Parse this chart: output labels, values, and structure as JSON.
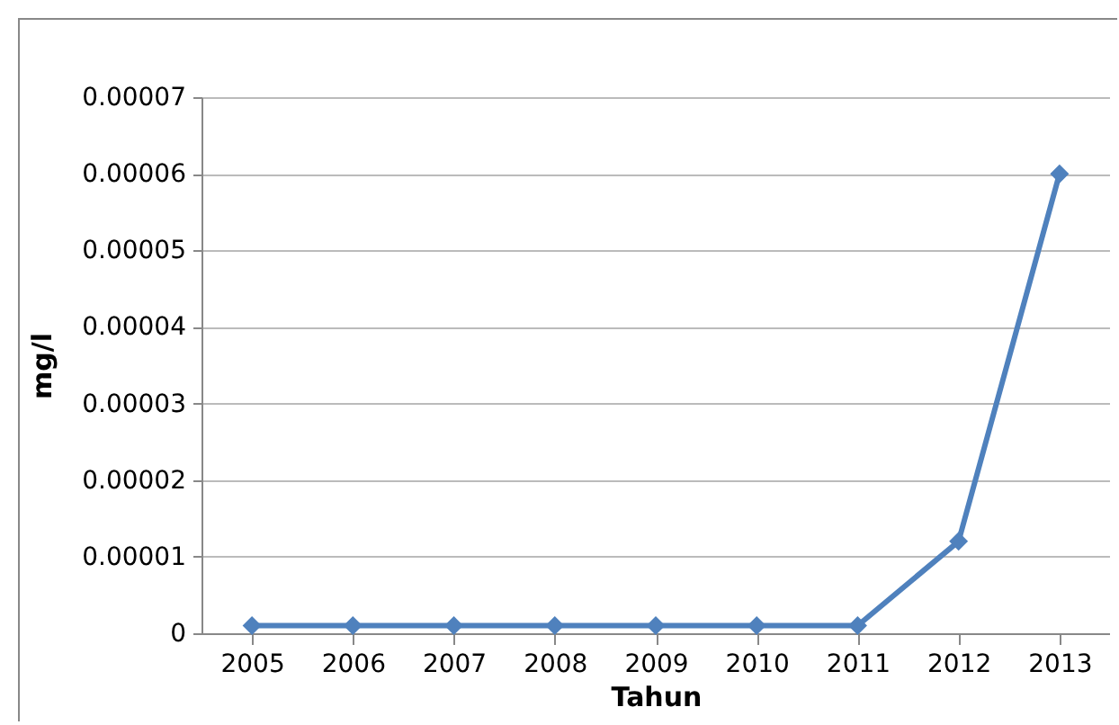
{
  "chart_data": {
    "type": "line",
    "xlabel": "Tahun",
    "ylabel": "mg/l",
    "categories": [
      "2005",
      "2006",
      "2007",
      "2008",
      "2009",
      "2010",
      "2011",
      "2012",
      "2013"
    ],
    "series": [
      {
        "color": "#4f81bd",
        "values": [
          1e-06,
          1e-06,
          1e-06,
          1e-06,
          1e-06,
          1e-06,
          1e-06,
          1.2e-05,
          6e-05
        ]
      }
    ],
    "ylim": [
      0,
      7e-05
    ],
    "yticks": [
      0,
      {
        "value": 1e-05,
        "label": "0.00001"
      },
      {
        "value": 2e-05,
        "label": "0.00002"
      },
      {
        "value": 3e-05,
        "label": "0.00003"
      },
      {
        "value": 4e-05,
        "label": "0.00004"
      },
      {
        "value": 5e-05,
        "label": "0.00005"
      },
      {
        "value": 6e-05,
        "label": "0.00006"
      },
      {
        "value": 7e-05,
        "label": "0.00007"
      }
    ],
    "grid": "y",
    "marker": "diamond",
    "line_style": "solid"
  }
}
